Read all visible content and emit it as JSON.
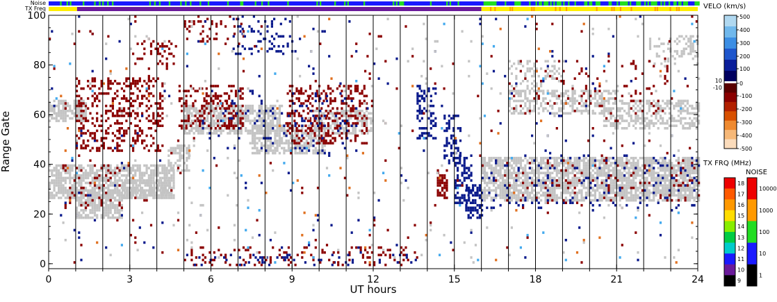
{
  "chart_data": {
    "type": "heatmap",
    "xlabel": "UT hours",
    "ylabel": "Range Gate",
    "xlim": [
      0,
      24
    ],
    "ylim": [
      -2,
      100
    ],
    "x_ticks": [
      0,
      3,
      6,
      9,
      12,
      15,
      18,
      21,
      24
    ],
    "x_tick_labels": [
      "0",
      "3",
      "6",
      "9",
      "12",
      "15",
      "18",
      "21",
      "24"
    ],
    "y_ticks": [
      0,
      20,
      40,
      60,
      80,
      100
    ],
    "y_tick_labels": [
      "0",
      "20",
      "40",
      "60",
      "80",
      "100"
    ],
    "hour_grid_lines": [
      1,
      2,
      3,
      4,
      5,
      6,
      7,
      8,
      9,
      10,
      11,
      12,
      13,
      14,
      15,
      16,
      17,
      18,
      19,
      20,
      21,
      22,
      23
    ],
    "grid": "vertical hourly lines",
    "status_bars": {
      "noise_label": "Noise",
      "txfreq_label": "TX Freq",
      "noise_colors": [
        "#22dd22",
        "#1a1aff"
      ],
      "txfreq_segments": [
        {
          "from": 0,
          "to": 1.05,
          "color": "#ffee00"
        },
        {
          "from": 1.05,
          "to": 16.0,
          "color": "#6a1a9a"
        },
        {
          "from": 16.0,
          "to": 24,
          "color": "#ffee00"
        }
      ]
    },
    "velocity_colorbar": {
      "title": "VELO (km/s)",
      "tick_labels": [
        "500",
        "400",
        "300",
        "200",
        "100",
        "10",
        "0",
        "-10",
        "-100",
        "-200",
        "-300",
        "-400",
        "-500"
      ],
      "colors_top_to_bottom": [
        "#b0d8f0",
        "#70b8ec",
        "#3c8ee4",
        "#1e56cc",
        "#0a1e9a",
        "#000060",
        "#ffffff",
        "#5a0000",
        "#8a0000",
        "#b22000",
        "#d85000",
        "#ef8a30",
        "#f6b878",
        "#fbdcbc"
      ]
    },
    "txfreq_colorbar": {
      "title": "TX FRQ (MHz)",
      "tick_labels": [
        "18",
        "17",
        "16",
        "15",
        "14",
        "13",
        "12",
        "11",
        "10",
        "9"
      ],
      "colors_top_to_bottom": [
        "#ee0000",
        "#ff5a00",
        "#ff9900",
        "#ffdd00",
        "#88ee00",
        "#00cc44",
        "#00cccc",
        "#1a1aff",
        "#6a1a9a",
        "#000000"
      ]
    },
    "noise_colorbar": {
      "title": "NOISE",
      "tick_labels": [
        "10000",
        "1000",
        "100",
        "10",
        "1"
      ],
      "colors_top_to_bottom": [
        "#ee0000",
        "#ff9900",
        "#22dd22",
        "#1a1aff",
        "#000000"
      ]
    },
    "scatter_colors": {
      "gray": "#c4c4c4",
      "darkred": "#8b0000",
      "navy": "#0a1a8c",
      "cyan": "#44aaee",
      "orange": "#e07020"
    },
    "regions": [
      {
        "type": "gray",
        "t0": 0,
        "t1": 4.6,
        "g0": 26,
        "g1": 40,
        "d": 0.7
      },
      {
        "type": "gray",
        "t0": 1.0,
        "t1": 2.7,
        "g0": 18,
        "g1": 30,
        "d": 0.7
      },
      {
        "type": "gray",
        "t0": 2.7,
        "t1": 4.5,
        "g0": 26,
        "g1": 34,
        "d": 0.6
      },
      {
        "type": "gray",
        "t0": 0,
        "t1": 1.4,
        "g0": 57,
        "g1": 66,
        "d": 0.7
      },
      {
        "type": "gray",
        "t0": 4.4,
        "t1": 5.2,
        "g0": 37,
        "g1": 48,
        "d": 0.6
      },
      {
        "type": "gray",
        "t0": 5.0,
        "t1": 8.5,
        "g0": 52,
        "g1": 64,
        "d": 0.7
      },
      {
        "type": "gray",
        "t0": 7.5,
        "t1": 10.2,
        "g0": 44,
        "g1": 56,
        "d": 0.7
      },
      {
        "type": "gray",
        "t0": 9.8,
        "t1": 11.9,
        "g0": 52,
        "g1": 62,
        "d": 0.6
      },
      {
        "type": "gray",
        "t0": 16.0,
        "t1": 24,
        "g0": 25,
        "g1": 43,
        "d": 0.75
      },
      {
        "type": "gray",
        "t0": 17.0,
        "t1": 21.0,
        "g0": 60,
        "g1": 70,
        "d": 0.5
      },
      {
        "type": "gray",
        "t0": 20.5,
        "t1": 24,
        "g0": 54,
        "g1": 66,
        "d": 0.5
      },
      {
        "type": "gray",
        "t0": 17.0,
        "t1": 19.0,
        "g0": 68,
        "g1": 82,
        "d": 0.25
      },
      {
        "type": "gray",
        "t0": 22.2,
        "t1": 24,
        "g0": 80,
        "g1": 92,
        "d": 0.25
      },
      {
        "type": "darkred",
        "t0": 1.0,
        "t1": 4.2,
        "g0": 45,
        "g1": 75,
        "d": 0.28
      },
      {
        "type": "darkred",
        "t0": 0.5,
        "t1": 2.6,
        "g0": 22,
        "g1": 40,
        "d": 0.15
      },
      {
        "type": "darkred",
        "t0": 3.0,
        "t1": 4.6,
        "g0": 78,
        "g1": 90,
        "d": 0.2
      },
      {
        "type": "darkred",
        "t0": 4.8,
        "t1": 7.2,
        "g0": 54,
        "g1": 72,
        "d": 0.32
      },
      {
        "type": "darkred",
        "t0": 5.0,
        "t1": 7.2,
        "g0": 88,
        "g1": 100,
        "d": 0.14
      },
      {
        "type": "darkred",
        "t0": 8.8,
        "t1": 11.8,
        "g0": 48,
        "g1": 72,
        "d": 0.3
      },
      {
        "type": "darkred",
        "t0": 14.35,
        "t1": 14.75,
        "g0": 26,
        "g1": 38,
        "d": 0.6
      },
      {
        "type": "darkred",
        "t0": 16.0,
        "t1": 24,
        "g0": 24,
        "g1": 42,
        "d": 0.05
      },
      {
        "type": "darkred",
        "t0": 17.0,
        "t1": 23.0,
        "g0": 60,
        "g1": 82,
        "d": 0.05
      },
      {
        "type": "darkred",
        "t0": 5.0,
        "t1": 13.6,
        "g0": -1,
        "g1": 7,
        "d": 0.12
      },
      {
        "type": "navy",
        "t0": 6.8,
        "t1": 9.0,
        "g0": 84,
        "g1": 100,
        "d": 0.15
      },
      {
        "type": "navy",
        "t0": 13.6,
        "t1": 14.3,
        "g0": 50,
        "g1": 72,
        "d": 0.35
      },
      {
        "type": "navy",
        "t0": 14.6,
        "t1": 15.2,
        "g0": 40,
        "g1": 60,
        "d": 0.35
      },
      {
        "type": "navy",
        "t0": 15.0,
        "t1": 15.6,
        "g0": 24,
        "g1": 44,
        "d": 0.45
      },
      {
        "type": "navy",
        "t0": 15.4,
        "t1": 16.0,
        "g0": 18,
        "g1": 32,
        "d": 0.5
      },
      {
        "type": "navy",
        "t0": 5.2,
        "t1": 13.6,
        "g0": -1,
        "g1": 4,
        "d": 0.12
      },
      {
        "type": "navy",
        "t0": 16.0,
        "t1": 24,
        "g0": 22,
        "g1": 44,
        "d": 0.06
      },
      {
        "type": "navy",
        "t0": 5.5,
        "t1": 11.5,
        "g0": 44,
        "g1": 70,
        "d": 0.05
      },
      {
        "type": "navy",
        "t0": 0,
        "t1": 24,
        "g0": 0,
        "g1": 100,
        "d": 0.006
      },
      {
        "type": "darkred",
        "t0": 0,
        "t1": 24,
        "g0": 0,
        "g1": 100,
        "d": 0.006
      },
      {
        "type": "gray",
        "t0": 0,
        "t1": 24,
        "g0": 0,
        "g1": 100,
        "d": 0.008
      },
      {
        "type": "cyan",
        "t0": 0,
        "t1": 24,
        "g0": 0,
        "g1": 100,
        "d": 0.002
      },
      {
        "type": "orange",
        "t0": 0,
        "t1": 24,
        "g0": 0,
        "g1": 100,
        "d": 0.002
      }
    ]
  }
}
